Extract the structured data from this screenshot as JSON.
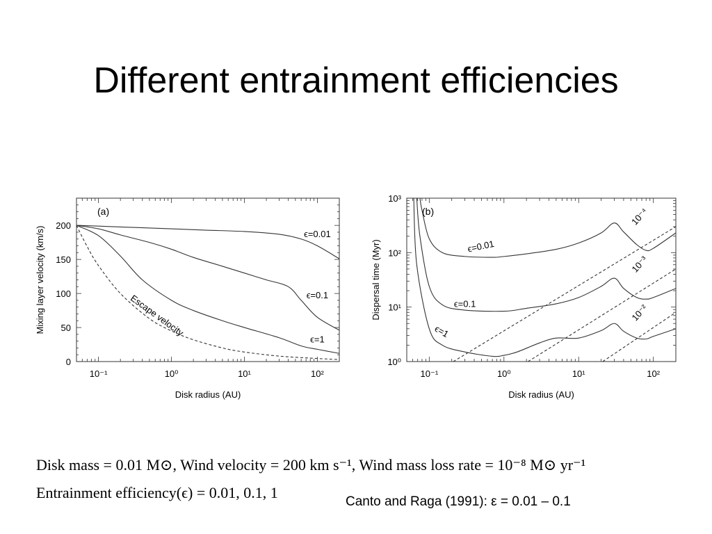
{
  "slide": {
    "title": "Different entrainment efficiencies",
    "params_line1": "Disk mass = 0.01 M⊙, Wind velocity = 200 km s⁻¹, Wind mass loss rate = 10⁻⁸ M⊙ yr⁻¹",
    "params_line2": "Entrainment efficiency(ϵ) = 0.01, 0.1, 1",
    "citation": "Canto and Raga (1991): ε = 0.01 – 0.1"
  },
  "chart_data": [
    {
      "type": "line",
      "panel_label": "(a)",
      "xlabel": "Disk radius (AU)",
      "ylabel": "Mixing layer velocity (km/s)",
      "xscale": "log",
      "xlim": [
        0.05,
        200
      ],
      "ylim": [
        0,
        240
      ],
      "x_ticks": [
        {
          "value": 0.1,
          "label": "10⁻¹"
        },
        {
          "value": 1,
          "label": "10⁰"
        },
        {
          "value": 10,
          "label": "10¹"
        },
        {
          "value": 100,
          "label": "10²"
        }
      ],
      "y_ticks": [
        {
          "value": 0,
          "label": "0"
        },
        {
          "value": 50,
          "label": "50"
        },
        {
          "value": 100,
          "label": "100"
        },
        {
          "value": 150,
          "label": "150"
        },
        {
          "value": 200,
          "label": "200"
        }
      ],
      "series": [
        {
          "name": "ϵ=0.01",
          "style": "solid",
          "x": [
            0.05,
            0.1,
            0.3,
            1,
            3,
            10,
            30,
            60,
            100,
            200
          ],
          "y": [
            200,
            199,
            197,
            195,
            193,
            191,
            187,
            180,
            170,
            151
          ]
        },
        {
          "name": "ϵ=0.1",
          "style": "solid",
          "x": [
            0.05,
            0.1,
            0.2,
            0.5,
            1,
            2,
            5,
            10,
            20,
            40,
            60,
            100,
            200
          ],
          "y": [
            200,
            195,
            186,
            175,
            165,
            153,
            140,
            130,
            120,
            110,
            90,
            65,
            46
          ]
        },
        {
          "name": "ϵ=1",
          "style": "solid",
          "x": [
            0.05,
            0.1,
            0.2,
            0.4,
            1,
            2,
            5,
            10,
            30,
            60,
            100,
            200
          ],
          "y": [
            200,
            185,
            155,
            120,
            90,
            75,
            60,
            50,
            35,
            23,
            18,
            12
          ]
        },
        {
          "name": "Escape velocity",
          "style": "dashed",
          "x": [
            0.05,
            0.07,
            0.1,
            0.2,
            0.5,
            1,
            2,
            5,
            10,
            30,
            100,
            200
          ],
          "y": [
            200,
            169,
            141,
            100,
            63,
            45,
            32,
            20,
            14,
            8,
            4.5,
            3
          ]
        }
      ],
      "annotations": [
        {
          "text": "ϵ=0.01",
          "x": 100,
          "y": 183
        },
        {
          "text": "ϵ=0.1",
          "x": 100,
          "y": 93
        },
        {
          "text": "ϵ=1",
          "x": 100,
          "y": 28
        },
        {
          "text": "Escape velocity",
          "x": 0.6,
          "y": 64,
          "angle": 36
        }
      ]
    },
    {
      "type": "line",
      "panel_label": "(b)",
      "xlabel": "Disk radius (AU)",
      "ylabel": "Dispersal time (Myr)",
      "xscale": "log",
      "yscale": "log",
      "xlim": [
        0.05,
        200
      ],
      "ylim": [
        1,
        1000
      ],
      "x_ticks": [
        {
          "value": 0.1,
          "label": "10⁻¹"
        },
        {
          "value": 1,
          "label": "10⁰"
        },
        {
          "value": 10,
          "label": "10¹"
        },
        {
          "value": 100,
          "label": "10²"
        }
      ],
      "y_ticks": [
        {
          "value": 1,
          "label": "10⁰"
        },
        {
          "value": 10,
          "label": "10¹"
        },
        {
          "value": 100,
          "label": "10²"
        },
        {
          "value": 1000,
          "label": "10³"
        }
      ],
      "series": [
        {
          "name": "ϵ=0.01",
          "style": "solid",
          "x": [
            0.075,
            0.08,
            0.1,
            0.15,
            0.3,
            0.7,
            1,
            2,
            5,
            10,
            20,
            30,
            40,
            60,
            80,
            100,
            200
          ],
          "y": [
            1000,
            600,
            180,
            100,
            85,
            82,
            85,
            95,
            115,
            150,
            230,
            350,
            240,
            140,
            110,
            120,
            230
          ]
        },
        {
          "name": "ϵ=0.1",
          "style": "solid",
          "x": [
            0.068,
            0.075,
            0.1,
            0.15,
            0.3,
            1,
            2,
            5,
            10,
            20,
            30,
            40,
            60,
            80,
            100,
            200
          ],
          "y": [
            1000,
            200,
            24,
            11,
            8.8,
            8.4,
            9.5,
            11.5,
            15,
            24,
            34,
            22,
            15,
            14,
            15,
            22
          ]
        },
        {
          "name": "ϵ=1",
          "style": "solid",
          "x": [
            0.062,
            0.068,
            0.1,
            0.15,
            0.3,
            0.7,
            1,
            1.5,
            3,
            5,
            10,
            20,
            30,
            40,
            60,
            80,
            100,
            200
          ],
          "y": [
            1000,
            60,
            4,
            2,
            1.5,
            1.25,
            1.3,
            1.5,
            2.2,
            2.7,
            2.7,
            3.7,
            5,
            3.6,
            2.7,
            2.6,
            2.9,
            4
          ]
        },
        {
          "name": "10⁻⁴",
          "style": "dashed",
          "x": [
            0.21,
            200
          ],
          "y": [
            1,
            300
          ]
        },
        {
          "name": "10⁻³",
          "style": "dashed",
          "x": [
            2.1,
            200
          ],
          "y": [
            1,
            50
          ]
        },
        {
          "name": "10⁻²",
          "style": "dashed",
          "x": [
            21,
            200
          ],
          "y": [
            1,
            8
          ]
        }
      ],
      "annotations": [
        {
          "text": "ϵ=0.01",
          "x": 0.5,
          "y": 115,
          "angle": -12
        },
        {
          "text": "ϵ=0.1",
          "x": 0.3,
          "y": 10
        },
        {
          "text": "ϵ=1",
          "x": 0.14,
          "y": 3.2,
          "angle": 30
        },
        {
          "text": "10⁻⁴",
          "x": 70,
          "y": 420,
          "angle": -48
        },
        {
          "text": "10⁻³",
          "x": 70,
          "y": 56,
          "angle": -48
        },
        {
          "text": "10⁻²",
          "x": 70,
          "y": 7.2,
          "angle": -48
        }
      ]
    }
  ]
}
